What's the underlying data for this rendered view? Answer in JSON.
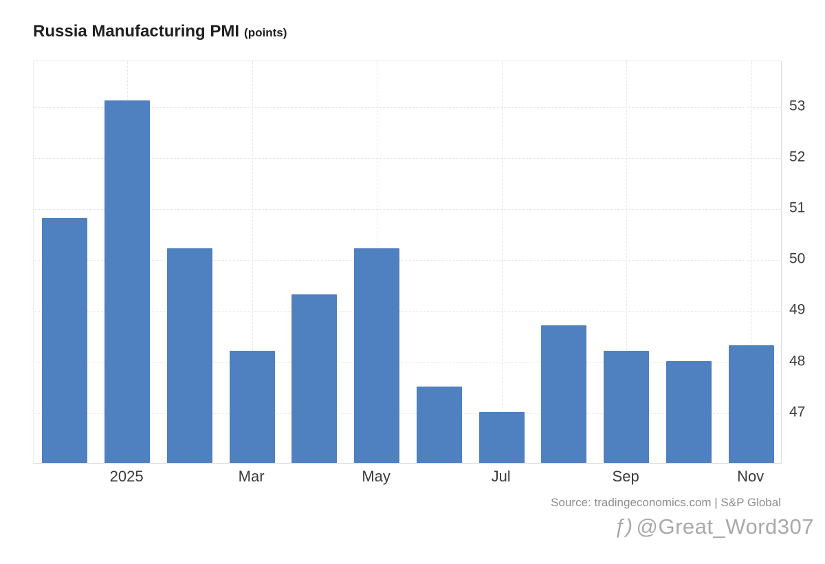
{
  "title": {
    "main": "Russia Manufacturing PMI",
    "suffix": "(points)"
  },
  "source": "Source: tradingeconomics.com | S&P Global",
  "watermark": {
    "icon": "ƒ)",
    "handle": "@Great_Word307"
  },
  "colors": {
    "bar": "#4f80bf",
    "grid": "#e2e2e2",
    "axis_text": "#3d3d3d",
    "title_text": "#1f1f1f",
    "source_text": "#8b8b8b",
    "watermark_text": "#a9a9a9"
  },
  "chart_data": {
    "type": "bar",
    "title": "Russia Manufacturing PMI (points)",
    "x": [
      "",
      "2025",
      "",
      "Mar",
      "",
      "May",
      "",
      "Jul",
      "",
      "Sep",
      "",
      "Nov"
    ],
    "values": [
      50.8,
      53.1,
      50.2,
      48.2,
      49.3,
      50.2,
      47.5,
      47.0,
      48.7,
      48.2,
      48.0,
      48.3
    ],
    "ylabel": "points",
    "ylim": [
      46,
      53.9
    ],
    "yticks": [
      47,
      48,
      49,
      50,
      51,
      52,
      53
    ],
    "y_axis_side": "right",
    "grid": true,
    "legend": false,
    "bar_color": "#4f80bf"
  }
}
